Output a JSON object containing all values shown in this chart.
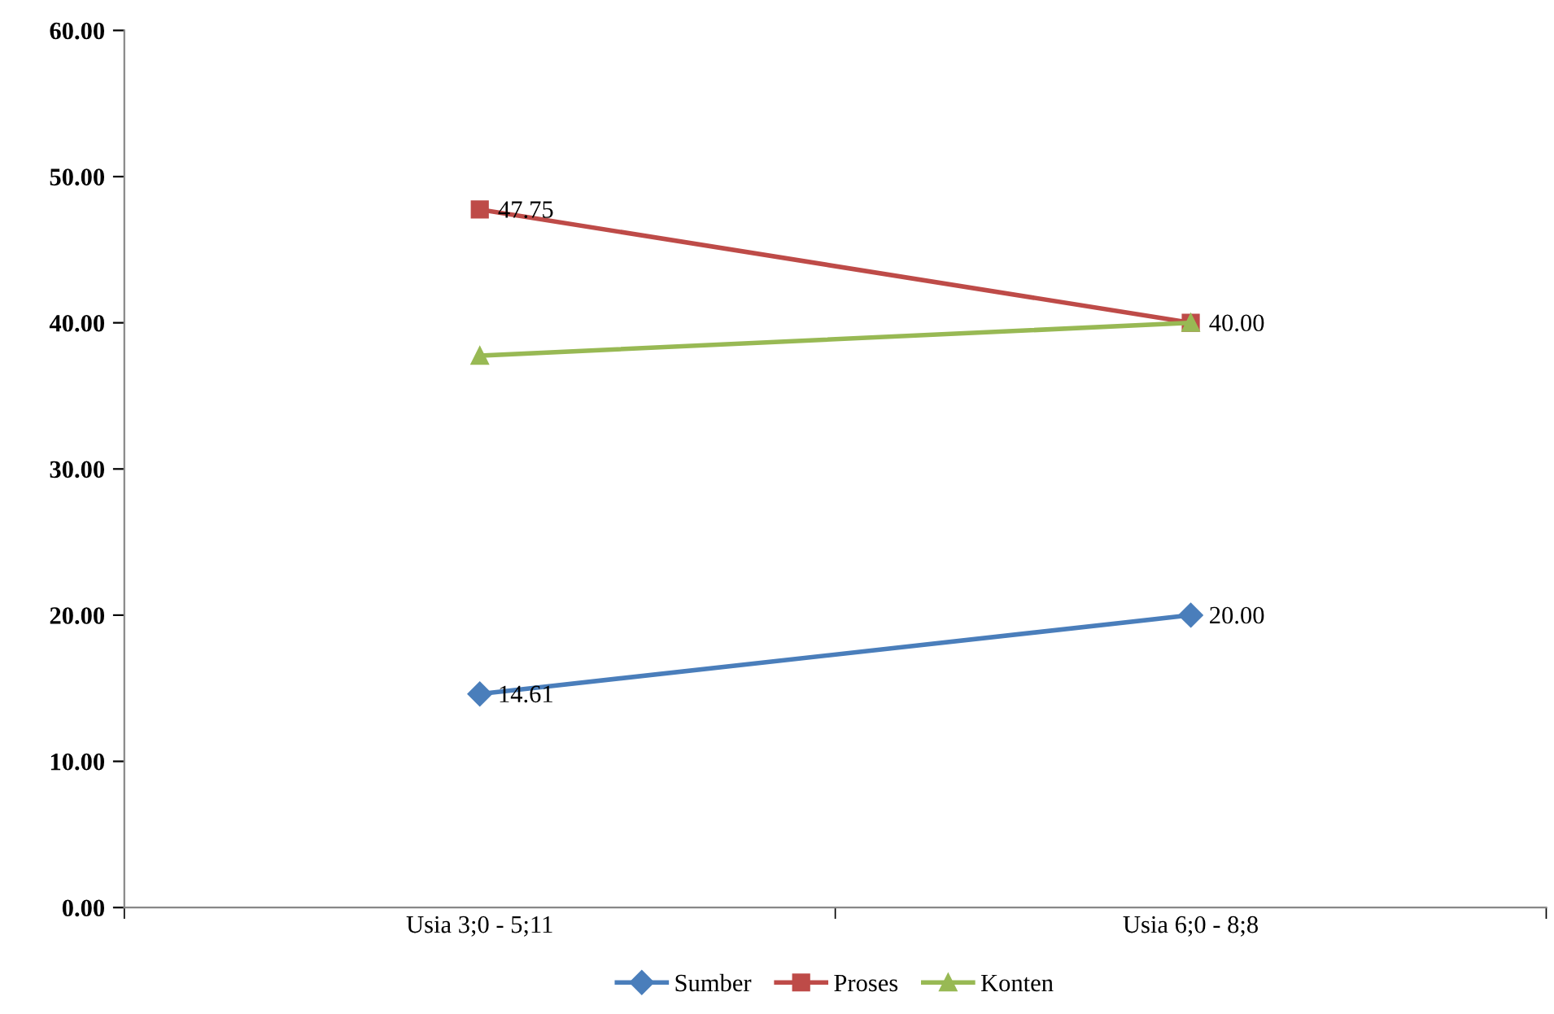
{
  "chart_data": {
    "type": "line",
    "categories": [
      "Usia 3;0 - 5;11",
      "Usia 6;0 - 8;8"
    ],
    "series": [
      {
        "name": "Sumber",
        "color": "#4a7ebb",
        "marker": "diamond",
        "values": [
          14.61,
          20.0
        ],
        "value_labels": [
          "14.61",
          "20.00"
        ]
      },
      {
        "name": "Proses",
        "color": "#be4b48",
        "marker": "square",
        "values": [
          47.75,
          40.0
        ],
        "value_labels": [
          "47.75",
          "40.00"
        ]
      },
      {
        "name": "Konten",
        "color": "#98b954",
        "marker": "triangle",
        "values": [
          37.75,
          40.0
        ],
        "value_labels": [
          null,
          null
        ]
      }
    ],
    "ylim": [
      0,
      60
    ],
    "yticks": [
      {
        "value": 0,
        "label": "0.00"
      },
      {
        "value": 10,
        "label": "10.00"
      },
      {
        "value": 20,
        "label": "20.00"
      },
      {
        "value": 30,
        "label": "30.00"
      },
      {
        "value": 40,
        "label": "40.00"
      },
      {
        "value": 50,
        "label": "50.00"
      },
      {
        "value": 60,
        "label": "60.00"
      }
    ],
    "grid": false,
    "legend": "bottom",
    "line_style": "solid"
  }
}
